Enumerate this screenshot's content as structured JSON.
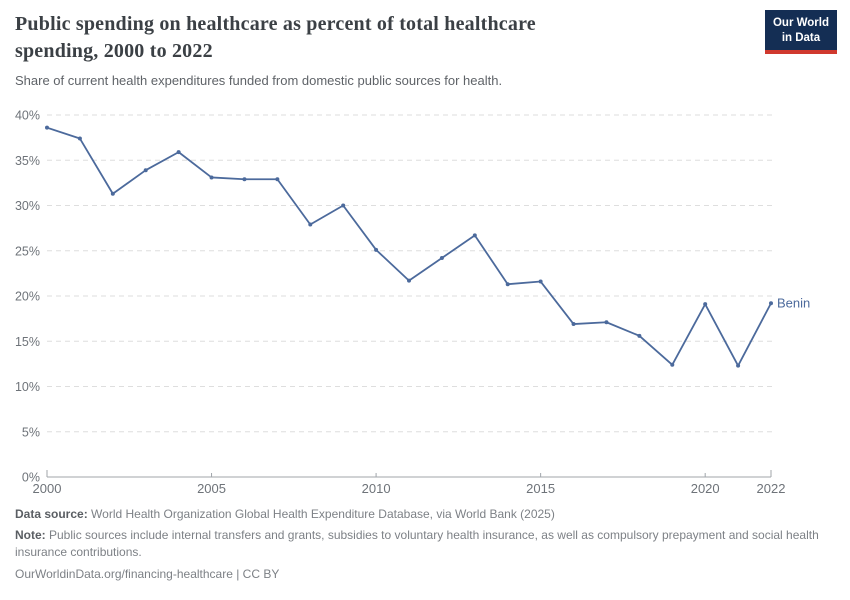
{
  "header": {
    "title": "Public spending on healthcare as percent of total healthcare spending, 2000 to 2022",
    "title_line1": "Public spending on healthcare as percent of total healthcare",
    "title_line2": "spending, 2000 to 2022",
    "subtitle": "Share of current health expenditures funded from domestic public sources for health.",
    "logo": {
      "line1": "Our World",
      "line2": "in Data"
    }
  },
  "chart_data": {
    "type": "line",
    "title": "Public spending on healthcare as percent of total healthcare spending, 2000 to 2022",
    "x": [
      2000,
      2001,
      2002,
      2003,
      2004,
      2005,
      2006,
      2007,
      2008,
      2009,
      2010,
      2011,
      2012,
      2013,
      2014,
      2015,
      2016,
      2017,
      2018,
      2019,
      2020,
      2021,
      2022
    ],
    "series": [
      {
        "name": "Benin",
        "color": "#4C6A9C",
        "values": [
          38.6,
          37.4,
          31.3,
          33.9,
          35.9,
          33.1,
          32.9,
          32.9,
          27.9,
          30.0,
          25.1,
          21.7,
          24.2,
          26.7,
          21.3,
          21.6,
          16.9,
          17.1,
          15.6,
          12.4,
          19.1,
          12.3,
          19.2
        ]
      }
    ],
    "xlabel": "",
    "ylabel": "",
    "ylim": [
      0,
      40
    ],
    "yticks": [
      0,
      5,
      10,
      15,
      20,
      25,
      30,
      35,
      40
    ],
    "ytick_suffix": "%",
    "xticks": [
      2000,
      2005,
      2010,
      2015,
      2020,
      2022
    ],
    "grid": true,
    "legend_position": "end-of-line-label",
    "end_label": "Benin"
  },
  "footer": {
    "data_source_label": "Data source:",
    "data_source": " World Health Organization Global Health Expenditure Database, via World Bank (2025)",
    "note_label": "Note:",
    "note": " Public sources include internal transfers and grants, subsidies to voluntary health insurance, as well as compulsory prepayment and social health insurance contributions.",
    "url": "OurWorldinData.org/financing-healthcare | CC BY"
  },
  "colors": {
    "line": "#4C6A9C",
    "gridline": "#dedede",
    "axis": "#a0a5aa",
    "axis_label": "#6e7379",
    "title": "#3b4045",
    "logo_bg": "#142E54",
    "logo_accent": "#D0392E"
  }
}
